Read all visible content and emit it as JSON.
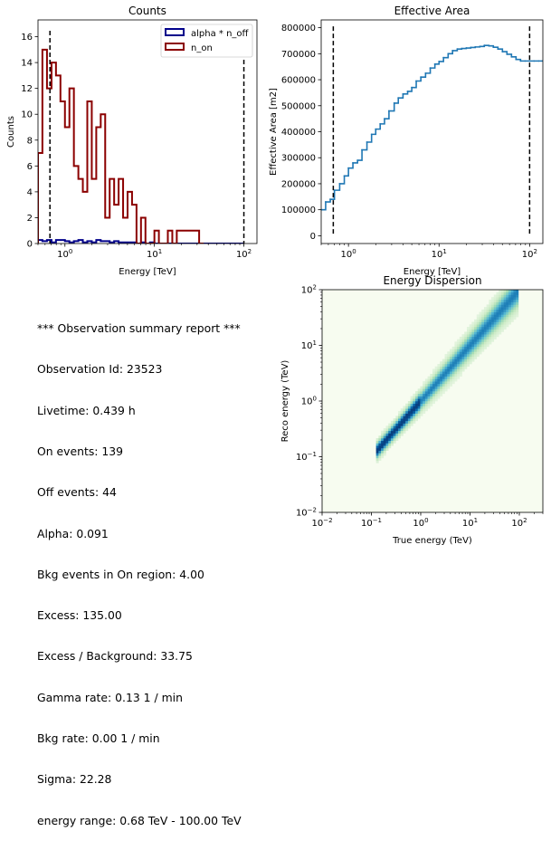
{
  "chart_data": [
    {
      "type": "step",
      "title": "Counts",
      "xlabel": "Energy [TeV]",
      "ylabel": "Counts",
      "xscale": "log",
      "xlim": [
        0.5,
        140
      ],
      "ylim": [
        0,
        17.3
      ],
      "y_ticks": [
        "0",
        "2",
        "4",
        "6",
        "8",
        "10",
        "12",
        "14",
        "16"
      ],
      "x_ticks": [
        "10^0",
        "10^1",
        "10^2"
      ],
      "threshold_lines": [
        0.68,
        100
      ],
      "legend_position": "top-right",
      "series": [
        {
          "name": "alpha * n_off",
          "color": "#00008b",
          "edges": [
            0.5,
            0.56,
            0.63,
            0.708,
            0.794,
            0.891,
            1.0,
            1.122,
            1.259,
            1.413,
            1.585,
            1.778,
            1.995,
            2.239,
            2.512,
            2.818,
            3.162,
            3.548,
            3.981,
            4.467,
            5.012,
            5.623,
            6.31,
            7.079,
            7.943,
            8.913,
            10.0,
            100
          ],
          "values": [
            0.27,
            0.18,
            0.27,
            0.09,
            0.27,
            0.27,
            0.18,
            0.09,
            0.18,
            0.27,
            0.09,
            0.18,
            0.09,
            0.27,
            0.18,
            0.18,
            0.09,
            0.18,
            0.09,
            0.09,
            0.09,
            0.09,
            0,
            0.09,
            0,
            0.09,
            0
          ]
        },
        {
          "name": "n_on",
          "color": "#8b0000",
          "edges": [
            0.5,
            0.56,
            0.63,
            0.708,
            0.794,
            0.891,
            1.0,
            1.122,
            1.259,
            1.413,
            1.585,
            1.778,
            1.995,
            2.239,
            2.512,
            2.818,
            3.162,
            3.548,
            3.981,
            4.467,
            5.012,
            5.623,
            6.31,
            7.079,
            7.943,
            8.913,
            10.0,
            11.22,
            12.59,
            14.13,
            15.85,
            17.78,
            19.95,
            22.39,
            25.12,
            28.18,
            31.62,
            35.48
          ],
          "values": [
            7,
            15,
            12,
            14,
            13,
            11,
            9,
            12,
            6,
            5,
            4,
            11,
            5,
            9,
            10,
            2,
            5,
            3,
            5,
            2,
            4,
            3,
            0,
            2,
            0,
            0,
            1,
            0,
            0,
            1,
            0,
            1,
            1,
            1,
            1,
            1,
            0
          ]
        }
      ]
    },
    {
      "type": "line",
      "title": "Effective Area",
      "xlabel": "Energy [TeV]",
      "ylabel": "Effective Area [m2]",
      "xscale": "log",
      "xlim": [
        0.5,
        140
      ],
      "ylim": [
        -30000,
        830000
      ],
      "y_ticks": [
        "0",
        "100000",
        "200000",
        "300000",
        "400000",
        "500000",
        "600000",
        "700000",
        "800000"
      ],
      "x_ticks": [
        "10^0",
        "10^1",
        "10^2"
      ],
      "threshold_lines": [
        0.68,
        100
      ],
      "color": "#1f77b4",
      "x": [
        0.5,
        0.56,
        0.63,
        0.7,
        0.8,
        0.9,
        1.0,
        1.12,
        1.26,
        1.41,
        1.6,
        1.8,
        2.0,
        2.24,
        2.5,
        2.8,
        3.2,
        3.55,
        4.0,
        4.5,
        5.0,
        5.6,
        6.3,
        7.1,
        8.0,
        9.0,
        10.0,
        11.2,
        12.6,
        14.1,
        15.9,
        17.8,
        20.0,
        22.4,
        25.1,
        28.2,
        31.6,
        35.5,
        39.8,
        44.7,
        50.1,
        56.2,
        63.1,
        70.8,
        79.4,
        89.1,
        100,
        112,
        126,
        140
      ],
      "y": [
        100000,
        130000,
        140000,
        175000,
        200000,
        230000,
        260000,
        280000,
        290000,
        330000,
        360000,
        390000,
        410000,
        430000,
        450000,
        480000,
        510000,
        530000,
        545000,
        555000,
        570000,
        595000,
        610000,
        625000,
        645000,
        660000,
        670000,
        685000,
        700000,
        712000,
        718000,
        720000,
        722000,
        724000,
        726000,
        728000,
        732000,
        730000,
        725000,
        718000,
        708000,
        698000,
        688000,
        678000,
        672000,
        672000,
        672000,
        672000,
        672000,
        672000
      ]
    },
    {
      "type": "heatmap",
      "title": "Energy Dispersion",
      "xlabel": "True energy (TeV)",
      "ylabel": "Reco energy (TeV)",
      "xscale": "log",
      "yscale": "log",
      "xlim": [
        0.01,
        300
      ],
      "ylim": [
        0.01,
        100
      ],
      "x_ticks": [
        "10^-2",
        "10^-1",
        "10^0",
        "10^1",
        "10^2"
      ],
      "y_ticks": [
        "10^-2",
        "10^-1",
        "10^0",
        "10^1",
        "10^2"
      ],
      "colormap": "GnBu",
      "true_energy_range": [
        0.13,
        100
      ]
    }
  ],
  "summary": {
    "lines": [
      "*** Observation summary report ***",
      "Observation Id: 23523",
      "Livetime: 0.439 h",
      "On events: 139",
      "Off events: 44",
      "Alpha: 0.091",
      "Bkg events in On region: 4.00",
      "Excess: 135.00",
      "Excess / Background: 33.75",
      "Gamma rate: 0.13 1 / min",
      "Bkg rate: 0.00 1 / min",
      "Sigma: 22.28",
      "energy range: 0.68 TeV - 100.00 TeV"
    ]
  }
}
